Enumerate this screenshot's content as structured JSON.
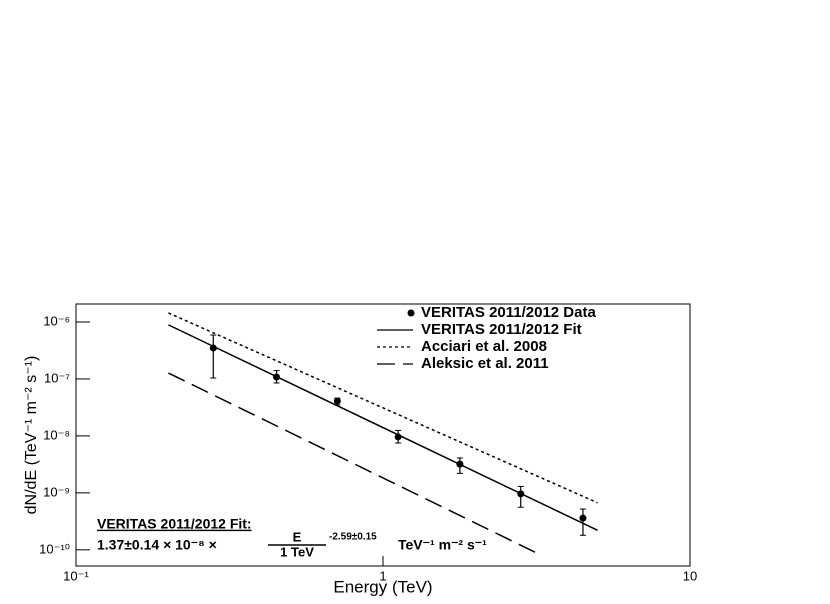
{
  "chart_data": {
    "type": "scatter",
    "xlabel": "Energy (TeV)",
    "ylabel": "dN/dE (TeV⁻¹ m⁻² s⁻¹)",
    "xlog": true,
    "ylog": true,
    "xlim": [
      0.1,
      10
    ],
    "ylim": [
      5.2e-11,
      2.07e-06
    ],
    "xticks": [
      {
        "value": 0.1,
        "label": "10⁻¹"
      },
      1,
      10
    ],
    "yticks": [
      {
        "value": 1e-10,
        "label": "10⁻¹⁰"
      },
      {
        "value": 1e-09,
        "label": "10⁻⁹"
      },
      {
        "value": 1e-08,
        "label": "10⁻⁸"
      },
      {
        "value": 1e-07,
        "label": "10⁻⁷"
      },
      {
        "value": 1e-06,
        "label": "10⁻⁶"
      }
    ],
    "legend": "upper right",
    "series": [
      {
        "name": "VERITAS 2011/2012 Data",
        "style": "points",
        "color": "#000000",
        "x": [
          0.28,
          0.45,
          0.71,
          1.12,
          1.78,
          2.81,
          4.48
        ],
        "values": [
          3.5e-07,
          1.08e-07,
          4.1e-08,
          9.6e-09,
          3.2e-09,
          9.6e-10,
          3.6e-10
        ],
        "y_low": [
          1.04e-07,
          8.5e-08,
          3.5e-08,
          7.5e-09,
          2.2e-09,
          5.6e-10,
          1.8e-10
        ],
        "y_high": [
          5.9e-07,
          1.4e-07,
          4.6e-08,
          1.25e-08,
          4.1e-09,
          1.3e-09,
          5.2e-10
        ]
      },
      {
        "name": "VERITAS 2011/2012 Fit",
        "style": "solid",
        "color": "#000000",
        "x": [
          0.2,
          5
        ],
        "values": [
          8.9e-07,
          2.2e-10
        ]
      },
      {
        "name": "Acciari et al. 2008",
        "style": "dotted",
        "color": "#000000",
        "x": [
          0.2,
          5
        ],
        "values": [
          1.44e-06,
          6.7e-10
        ]
      },
      {
        "name": "Aleksic et al. 2011",
        "style": "dashed",
        "color": "#000000",
        "x": [
          0.2,
          3.25
        ],
        "values": [
          1.27e-07,
          8.2e-11
        ]
      }
    ],
    "annotation": {
      "title": "VERITAS 2011/2012 Fit:",
      "prefix": "1.37±0.14 × 10⁻⁸ ×",
      "numerator": "E",
      "denominator": "1 TeV",
      "exponent": "-2.59±0.15",
      "units": "TeV⁻¹ m⁻² s⁻¹"
    }
  }
}
